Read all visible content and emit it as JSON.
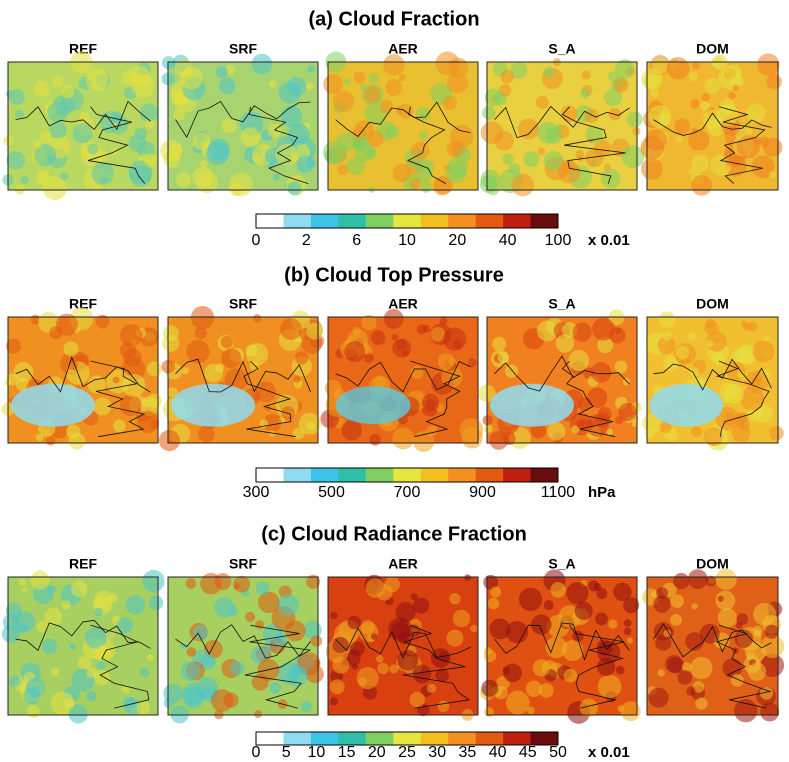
{
  "panels": [
    {
      "title": "(a) Cloud Fraction",
      "maps": [
        "REF",
        "SRF",
        "AER",
        "S_A",
        "DOM"
      ],
      "colorbar": {
        "labels": [
          0,
          2,
          6,
          10,
          20,
          40,
          100
        ],
        "unit": "x 0.01"
      }
    },
    {
      "title": "(b) Cloud Top Pressure",
      "maps": [
        "REF",
        "SRF",
        "AER",
        "S_A",
        "DOM"
      ],
      "colorbar": {
        "labels": [
          300,
          500,
          700,
          900,
          1100
        ],
        "unit": "hPa"
      }
    },
    {
      "title": "(c) Cloud Radiance Fraction",
      "maps": [
        "REF",
        "SRF",
        "AER",
        "S_A",
        "DOM"
      ],
      "colorbar": {
        "labels": [
          0,
          5,
          10,
          15,
          20,
          25,
          30,
          35,
          40,
          45,
          50
        ],
        "unit": "x 0.01"
      }
    }
  ]
}
